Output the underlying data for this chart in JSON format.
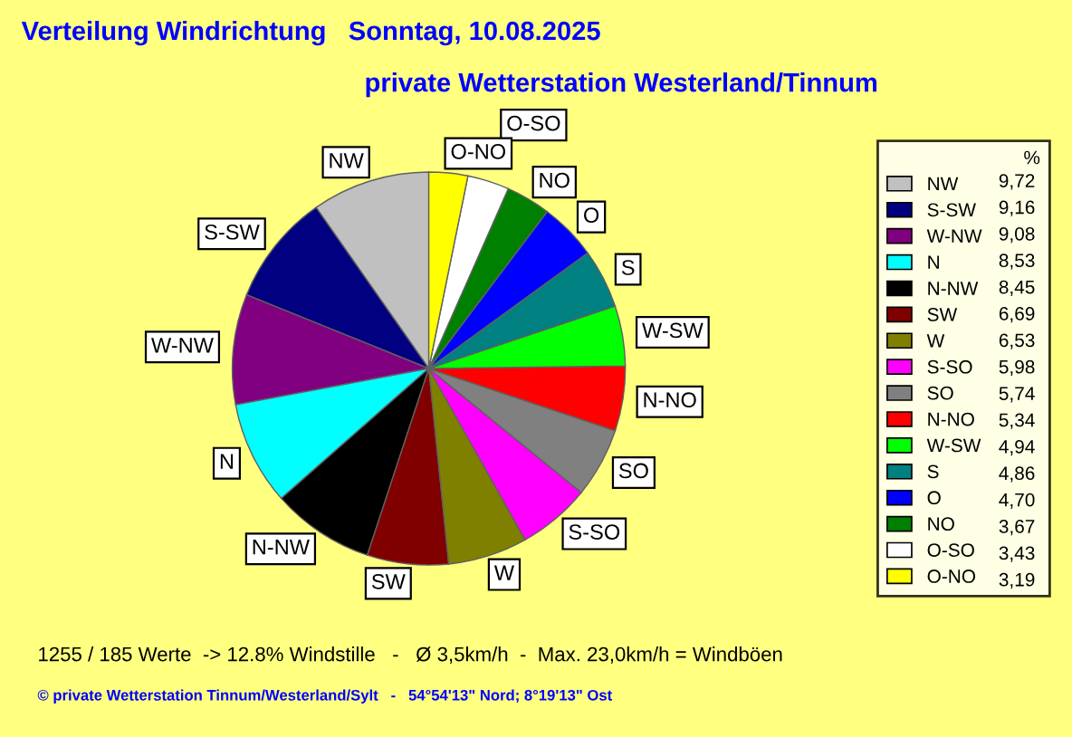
{
  "chart_data": {
    "type": "pie",
    "title": "Verteilung Windrichtung   Sonntag, 10.08.2025",
    "subtitle": "private Wetterstation Westerland/Tinnum",
    "categories": [
      "NW",
      "S-SW",
      "W-NW",
      "N",
      "N-NW",
      "SW",
      "W",
      "S-SO",
      "SO",
      "N-NO",
      "W-SW",
      "S",
      "O",
      "NO",
      "O-SO",
      "O-NO"
    ],
    "values": [
      9.72,
      9.16,
      9.08,
      8.53,
      8.45,
      6.69,
      6.53,
      5.98,
      5.74,
      5.34,
      4.94,
      4.86,
      4.7,
      3.67,
      3.43,
      3.19
    ],
    "value_labels": [
      "9,72",
      "9,16",
      "9,08",
      "8,53",
      "8,45",
      "6,69",
      "6,53",
      "5,98",
      "5,74",
      "5,34",
      "4,94",
      "4,86",
      "4,70",
      "3,67",
      "3,43",
      "3,19"
    ],
    "colors": [
      "#c0c0c0",
      "#000080",
      "#800080",
      "#00ffff",
      "#000000",
      "#800000",
      "#808000",
      "#ff00ff",
      "#808080",
      "#ff0000",
      "#00ff00",
      "#008080",
      "#0000ff",
      "#008000",
      "#ffffff",
      "#ffff00"
    ],
    "legend": "right",
    "legend_title": "%",
    "annotations": [
      "1255 / 185 Werte  -> 12.8% Windstille   -   Ø 3,5km/h  -  Max. 23,0km/h = Windböen",
      "© private Wetterstation Tinnum/Westerland/Sylt   -   54°54'13\" Nord; 8°19'13\" Ost"
    ]
  }
}
